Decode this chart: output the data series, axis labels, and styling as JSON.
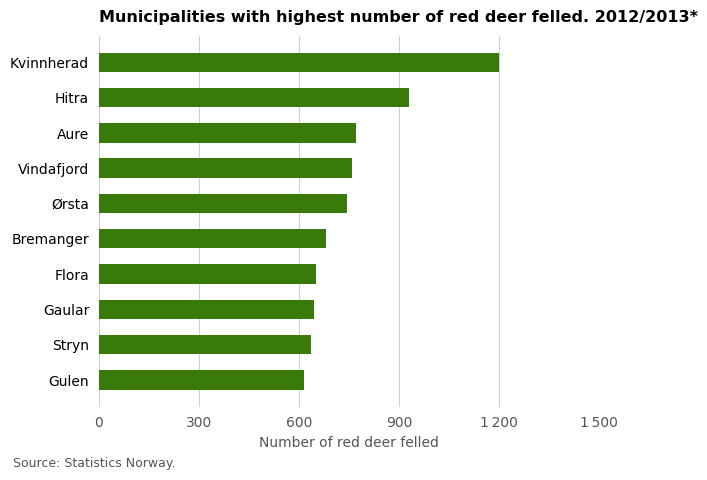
{
  "title": "Municipalities with highest number of red deer felled. 2012/2013*",
  "categories": [
    "Gulen",
    "Stryn",
    "Gaular",
    "Flora",
    "Bremanger",
    "Ørsta",
    "Vindafjord",
    "Aure",
    "Hitra",
    "Kvinnherad"
  ],
  "values": [
    615,
    635,
    645,
    650,
    680,
    745,
    760,
    770,
    930,
    1200
  ],
  "bar_color": "#3a7a0a",
  "xlabel": "Number of red deer felled",
  "xlim": [
    0,
    1500
  ],
  "xticks": [
    0,
    300,
    600,
    900,
    1200,
    1500
  ],
  "source": "Source: Statistics Norway.",
  "background_color": "#ffffff",
  "grid_color": "#d0d0d0",
  "title_fontsize": 11.5,
  "label_fontsize": 10,
  "tick_fontsize": 10,
  "source_fontsize": 9,
  "bar_height": 0.55
}
